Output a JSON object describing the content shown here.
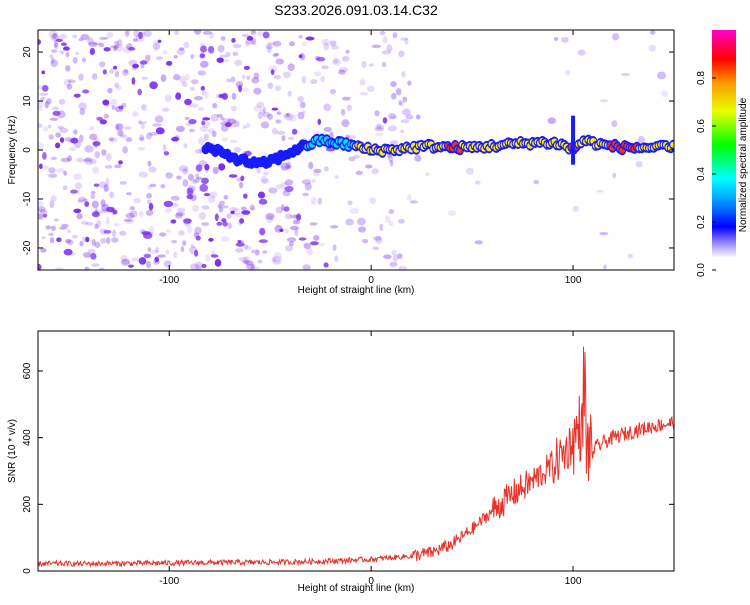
{
  "page_title": "S233.2026.091.03.14.C32",
  "colors": {
    "line": "#e8322a",
    "frame": "#000000",
    "dots": "#7a2ff0",
    "ridge_low": "#1a1aff",
    "ridge_mid": "#00e6e6",
    "ridge_high": "#ff3300"
  },
  "chart_data": [
    {
      "type": "heatmap",
      "title": "S233.2026.091.03.14.C32",
      "xlabel": "Height of straight line (km)",
      "ylabel": "Frequency (Hz)",
      "xlim": [
        -165,
        150
      ],
      "ylim": [
        -24.5,
        24.5
      ],
      "x_ticks": [
        -100,
        0,
        100
      ],
      "x_tick_labels": [
        "-100",
        "0",
        "100"
      ],
      "y_ticks": [
        -20,
        -10,
        0,
        10,
        20
      ],
      "y_tick_labels": [
        "-20",
        "-10",
        "0",
        "10",
        "20"
      ],
      "colorbar": {
        "label": "Normalized spectral amplitude",
        "range": [
          0,
          1
        ],
        "ticks": [
          0.0,
          0.2,
          0.4,
          0.6,
          0.8
        ],
        "tick_labels": [
          "0.0",
          "0.2",
          "0.4",
          "0.6",
          "0.8"
        ]
      },
      "ridge": {
        "x": [
          -82,
          -75,
          -65,
          -55,
          -45,
          -38,
          -32,
          -25,
          -18,
          -10,
          0,
          10,
          20,
          30,
          40,
          50,
          60,
          70,
          80,
          90,
          95,
          100,
          105,
          115,
          125,
          135,
          150
        ],
        "freq": [
          0.5,
          -0.5,
          -2.0,
          -3.0,
          -1.5,
          0.0,
          1.0,
          2.0,
          1.5,
          1.0,
          0.0,
          0.0,
          0.5,
          0.8,
          0.5,
          0.5,
          0.8,
          1.2,
          1.5,
          1.5,
          1.0,
          0.0,
          2.0,
          1.0,
          0.5,
          0.5,
          0.5
        ],
        "amplitude": [
          0.2,
          0.25,
          0.25,
          0.3,
          0.3,
          0.3,
          0.35,
          0.4,
          0.4,
          0.45,
          0.7,
          0.5,
          0.55,
          0.6,
          0.8,
          0.7,
          0.6,
          0.6,
          0.6,
          0.55,
          0.5,
          0.9,
          0.6,
          0.7,
          0.85,
          0.7,
          0.5
        ]
      }
    },
    {
      "type": "line",
      "xlabel": "Height of straight line (km)",
      "ylabel": "SNR (10 * v/v)",
      "xlim": [
        -165,
        150
      ],
      "ylim": [
        0,
        720
      ],
      "x_ticks": [
        -100,
        0,
        100
      ],
      "x_tick_labels": [
        "-100",
        "0",
        "100"
      ],
      "y_ticks": [
        0,
        200,
        400,
        600
      ],
      "y_tick_labels": [
        "0",
        "200",
        "400",
        "600"
      ],
      "series": [
        {
          "name": "SNR",
          "x": [
            -165,
            -140,
            -120,
            -100,
            -80,
            -60,
            -40,
            -20,
            0,
            10,
            20,
            30,
            40,
            50,
            60,
            70,
            80,
            90,
            95,
            100,
            104,
            106,
            108,
            110,
            115,
            120,
            130,
            140,
            150
          ],
          "y": [
            22,
            22,
            23,
            24,
            25,
            26,
            27,
            30,
            35,
            40,
            45,
            55,
            80,
            125,
            180,
            230,
            270,
            320,
            350,
            390,
            440,
            380,
            360,
            365,
            385,
            400,
            420,
            435,
            445
          ]
        }
      ]
    }
  ]
}
